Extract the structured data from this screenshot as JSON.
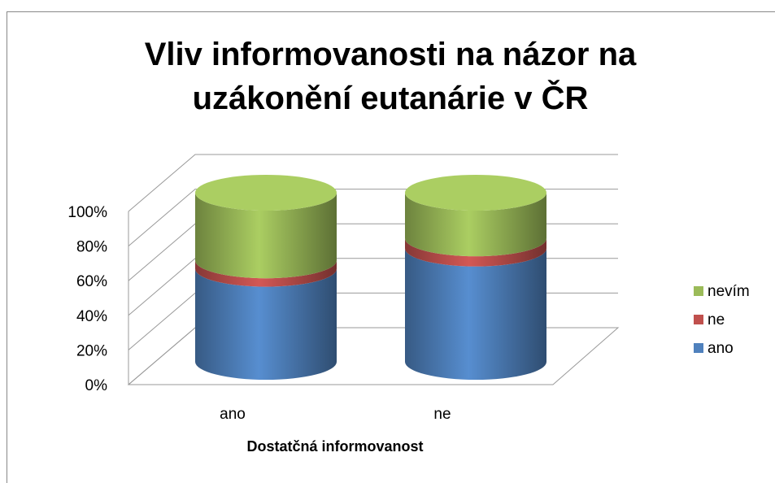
{
  "chart_data": {
    "type": "bar3d_stacked",
    "title": "Vliv informovanosti na názor na uzákonění eutanárie v ČR",
    "x_label": "Dostatčná informovanost",
    "categories": [
      "ano",
      "ne"
    ],
    "series": [
      {
        "name": "ano",
        "color": "#4f81bd",
        "values": [
          55,
          67
        ]
      },
      {
        "name": "ne",
        "color": "#c0504d",
        "values": [
          5,
          6
        ]
      },
      {
        "name": "nevím",
        "color": "#9bbb59",
        "values": [
          40,
          27
        ]
      }
    ],
    "ylim": [
      0,
      100
    ],
    "yticks": [
      {
        "value": 0,
        "label": "0%"
      },
      {
        "value": 20,
        "label": "20%"
      },
      {
        "value": 40,
        "label": "40%"
      },
      {
        "value": 60,
        "label": "60%"
      },
      {
        "value": 80,
        "label": "80%"
      },
      {
        "value": 100,
        "label": "100%"
      }
    ],
    "grid": true,
    "legend": "right"
  }
}
